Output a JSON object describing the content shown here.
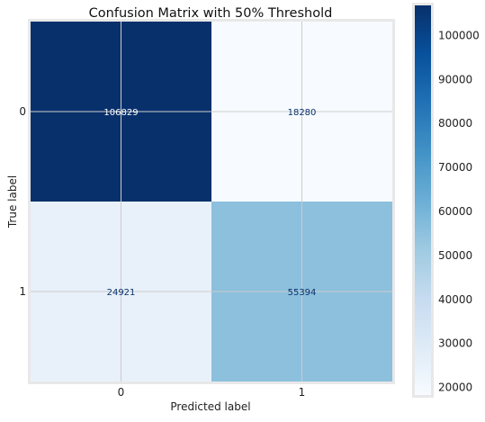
{
  "chart_data": {
    "type": "heatmap",
    "title": "Confusion Matrix with 50% Threshold",
    "xlabel": "Predicted label",
    "ylabel": "True label",
    "x_categories": [
      "0",
      "1"
    ],
    "y_categories": [
      "0",
      "1"
    ],
    "values": [
      [
        106829,
        18280
      ],
      [
        24921,
        55394
      ]
    ],
    "cell_labels": [
      [
        "106829",
        "18280"
      ],
      [
        "24921",
        "55394"
      ]
    ],
    "colormap": "Blues",
    "color_range": [
      18280,
      106829
    ],
    "colorbar_ticks": [
      20000,
      30000,
      40000,
      50000,
      60000,
      70000,
      80000,
      90000,
      100000
    ],
    "colorbar_tick_labels": [
      "20000",
      "30000",
      "40000",
      "50000",
      "60000",
      "70000",
      "80000",
      "90000",
      "100000"
    ],
    "grid": true,
    "colors": {
      "low": "#f7fbff",
      "high": "#08306b",
      "text_dark_cell": "#ffffff",
      "text_light_cell": "#08306b",
      "grid": "#cccccc",
      "axes_frame": "#e8e8e8"
    }
  }
}
